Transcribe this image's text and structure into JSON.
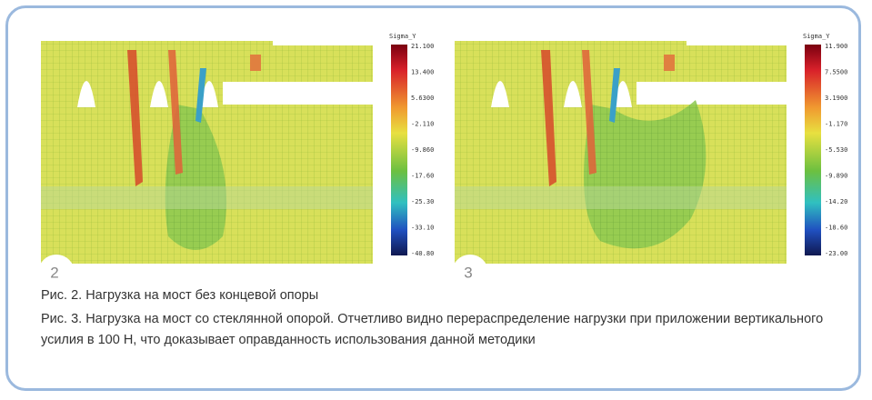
{
  "figures": [
    {
      "number": "2",
      "colorbar": {
        "title": "Sigma_Y",
        "labels": [
          "21.100",
          "13.400",
          "5.6300",
          "-2.110",
          "-9.860",
          "-17.60",
          "-25.30",
          "-33.10",
          "-40.80"
        ]
      }
    },
    {
      "number": "3",
      "colorbar": {
        "title": "Sigma_Y",
        "labels": [
          "11.900",
          "7.5500",
          "3.1900",
          "-1.170",
          "-5.530",
          "-9.890",
          "-14.20",
          "-18.60",
          "-23.00"
        ]
      }
    }
  ],
  "captions": [
    "Рис. 2. Нагрузка на мост без концевой опоры",
    "Рис. 3. Нагрузка на мост со стеклянной опорой. Отчетливо видно перераспределение нагрузки при приложении вертикального усилия в 100 Н, что доказывает оправданность использования данной методики"
  ]
}
